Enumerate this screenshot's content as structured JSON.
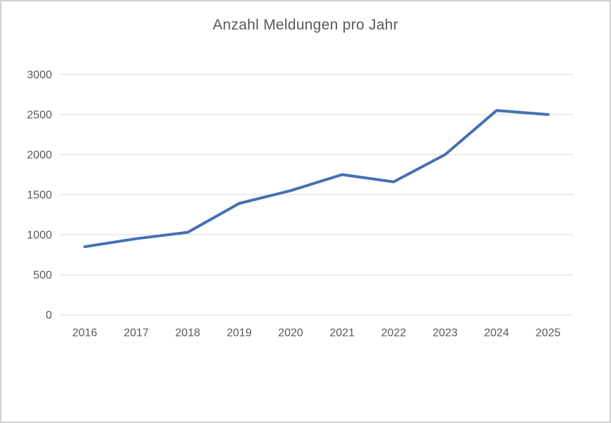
{
  "window": {
    "background": "#ffffff",
    "border_color": "#d1d1d1"
  },
  "chart_data": {
    "type": "line",
    "title": "Anzahl Meldungen pro Jahr",
    "categories": [
      "2016",
      "2017",
      "2018",
      "2019",
      "2020",
      "2021",
      "2022",
      "2023",
      "2024",
      "2025"
    ],
    "values": [
      850,
      950,
      1030,
      1390,
      1550,
      1750,
      1660,
      2000,
      2550,
      2500
    ],
    "xlabel": "",
    "ylabel": "",
    "ylim": [
      0,
      3000
    ],
    "ytick_step": 500,
    "grid": true,
    "legend": false,
    "line_color": "#4571B3",
    "gridline_color": "#D9D9D9",
    "text_color": "#595959"
  }
}
